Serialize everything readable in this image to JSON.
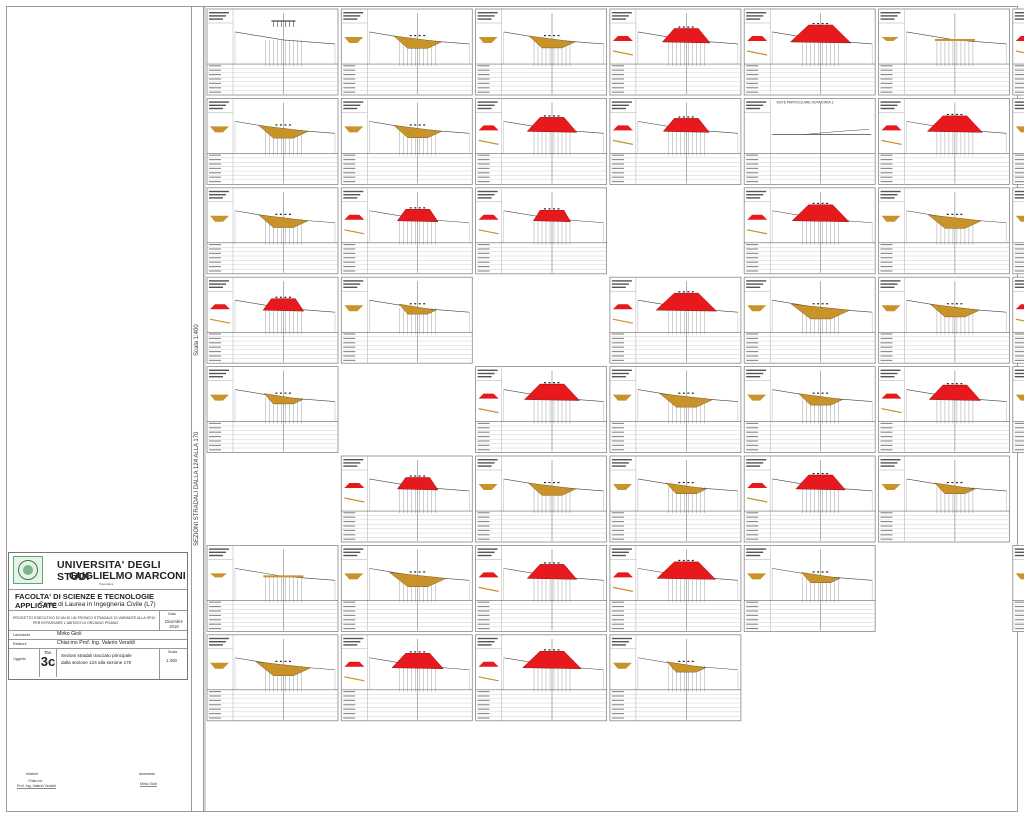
{
  "side": {
    "scale_label": "Scala 1:400",
    "series_label": "SEZIONI STRADALI DALLA 124 ALLA 170"
  },
  "university": {
    "name_line1": "UNIVERSITA' DEGLI STUDI",
    "name_line2": "GUGLIELMO MARCONI",
    "subtitle": "Telematica",
    "faculty": "FACOLTA' DI SCIENZE E TECNOLOGIE APPLICATE",
    "course": "Corso di Laurea in Ingegneria Civile (L7)"
  },
  "project": {
    "title_line1": "PROGETTO ESECUTIVO DI UN DI UN TRONCO STRADALE DI VARIANTE ALLA SP10",
    "title_line2": "PER BYPASSARE L'ABITATO DI ORCIANO PISANO",
    "date_label": "Data",
    "date_value": "Dicembre 2016"
  },
  "people": {
    "author_label": "Laureando",
    "author": "Mirko Gioli",
    "advisor_label": "Relatore",
    "advisor": "Chiar.mo Prof. Ing. Valerio Veraldi"
  },
  "sheet": {
    "object_label": "Oggetto",
    "tav_label": "Tav.",
    "tav_number": "3c",
    "description_line1": "Sezioni stradali tracciato principale",
    "description_line2": "dalla sezione 124 alla sezione 170",
    "scale_label": "Scala",
    "scale_value": "1:400"
  },
  "signatures": {
    "left_role": "relatore",
    "left_line1": "Chiar.mo",
    "left_line2": "Prof. Ing. Valerio Veraldi",
    "right_role": "laureando",
    "right_name": "Mirko Gioli"
  },
  "grid": {
    "cols": 7,
    "rows": 9,
    "detail_caption": "VISTE PARTICOLARE ROTATORIA 1",
    "colors": {
      "fill": "#e8191c",
      "cut": "#c8932a",
      "lines": "#444444",
      "frame": "#888888"
    }
  },
  "sections": [
    {
      "t": "bridge"
    },
    {
      "t": "cut",
      "a": 0.55
    },
    {
      "t": "cut",
      "a": 0.5
    },
    {
      "t": "fill",
      "a": 0.55
    },
    {
      "t": "fill",
      "a": 0.9
    },
    {
      "t": "flat"
    },
    {
      "t": "fill",
      "a": 0.75
    },
    {
      "t": "cut",
      "a": 0.6
    },
    {
      "t": "cut",
      "a": 0.55
    },
    {
      "t": "fill",
      "a": 0.6
    },
    {
      "t": "fill",
      "a": 0.5
    },
    {
      "t": "detail"
    },
    {
      "t": "fill",
      "a": 0.75
    },
    {
      "t": "cut",
      "a": 0.5
    },
    {
      "t": "cut",
      "a": 0.6
    },
    {
      "t": "fill",
      "a": 0.35
    },
    {
      "t": "fill",
      "a": 0.25
    },
    {
      "t": "none"
    },
    {
      "t": "fill",
      "a": 0.8
    },
    {
      "t": "cut",
      "a": 0.7
    },
    {
      "t": "cut",
      "a": 0.6
    },
    {
      "t": "fill",
      "a": 0.35
    },
    {
      "t": "cut",
      "a": 0.25
    },
    {
      "t": "none"
    },
    {
      "t": "fill",
      "a": 0.9
    },
    {
      "t": "cut",
      "a": 0.85
    },
    {
      "t": "cut",
      "a": 0.6
    },
    {
      "t": "fill",
      "a": 0.45
    },
    {
      "t": "cut",
      "a": 0.3
    },
    {
      "t": "none"
    },
    {
      "t": "fill",
      "a": 0.75
    },
    {
      "t": "cut",
      "a": 0.7
    },
    {
      "t": "cut",
      "a": 0.45
    },
    {
      "t": "fill",
      "a": 0.65
    },
    {
      "t": "cut",
      "a": 0.35
    },
    {
      "t": "none"
    },
    {
      "t": "fill",
      "a": 0.35
    },
    {
      "t": "cut",
      "a": 0.55
    },
    {
      "t": "cut",
      "a": 0.35
    },
    {
      "t": "fill",
      "a": 0.6
    },
    {
      "t": "cut",
      "a": 0.35
    },
    {
      "t": "none"
    },
    {
      "t": "flat2"
    },
    {
      "t": "cut",
      "a": 0.8
    },
    {
      "t": "fill",
      "a": 0.6
    },
    {
      "t": "fill",
      "a": 0.85
    },
    {
      "t": "cut",
      "a": 0.3
    },
    {
      "t": "none"
    },
    {
      "t": "cut",
      "a": 0.35
    },
    {
      "t": "cut",
      "a": 0.75
    },
    {
      "t": "fill",
      "a": 0.65
    },
    {
      "t": "fill",
      "a": 0.85
    },
    {
      "t": "cut",
      "a": 0.3
    },
    {
      "t": "none"
    }
  ]
}
